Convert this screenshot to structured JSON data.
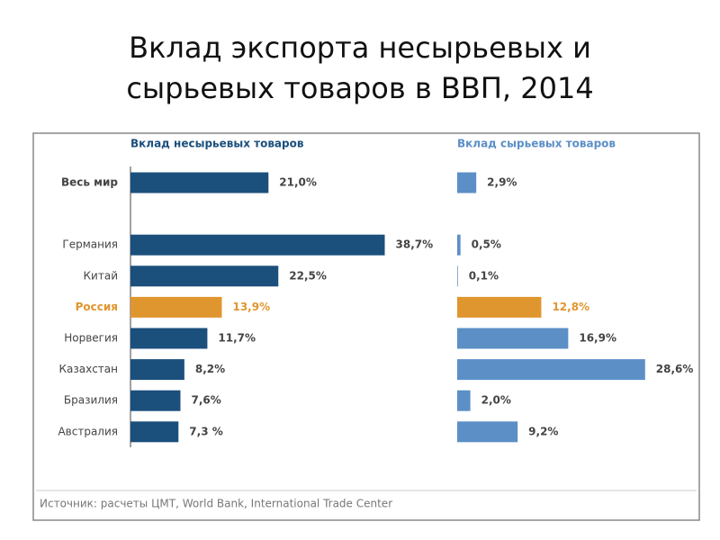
{
  "title_lines": [
    "Вклад экспорта несырьевых и",
    "сырьевых товаров в ВВП, 2014"
  ],
  "source": "Источник: расчеты ЦМТ, World Bank, International Trade Center",
  "chart_data": {
    "type": "bar",
    "orientation": "horizontal",
    "categories": [
      "Весь мир",
      null,
      "Германия",
      "Китай",
      "Россия",
      "Норвегия",
      "Казахстан",
      "Бразилия",
      "Австралия"
    ],
    "highlight": "Россия",
    "highlight_color": "#e0962e",
    "series": [
      {
        "name": "Вклад несырьевых товаров",
        "color": "#1b4f7c",
        "values": [
          21.0,
          null,
          38.7,
          22.5,
          13.9,
          11.7,
          8.2,
          7.6,
          7.3
        ],
        "value_labels": [
          "21,0%",
          null,
          "38,7%",
          "22,5%",
          "13,9%",
          "11,7%",
          "8,2%",
          "7,6%",
          "7,3 %"
        ]
      },
      {
        "name": "Вклад сырьевых товаров",
        "color": "#5b8fc6",
        "values": [
          2.9,
          null,
          0.5,
          0.1,
          12.8,
          16.9,
          28.6,
          2.0,
          9.2
        ],
        "value_labels": [
          "2,9%",
          null,
          "0,5%",
          "0,1%",
          "12,8%",
          "16,9%",
          "28,6%",
          "2,0%",
          "9,2%"
        ]
      }
    ]
  }
}
